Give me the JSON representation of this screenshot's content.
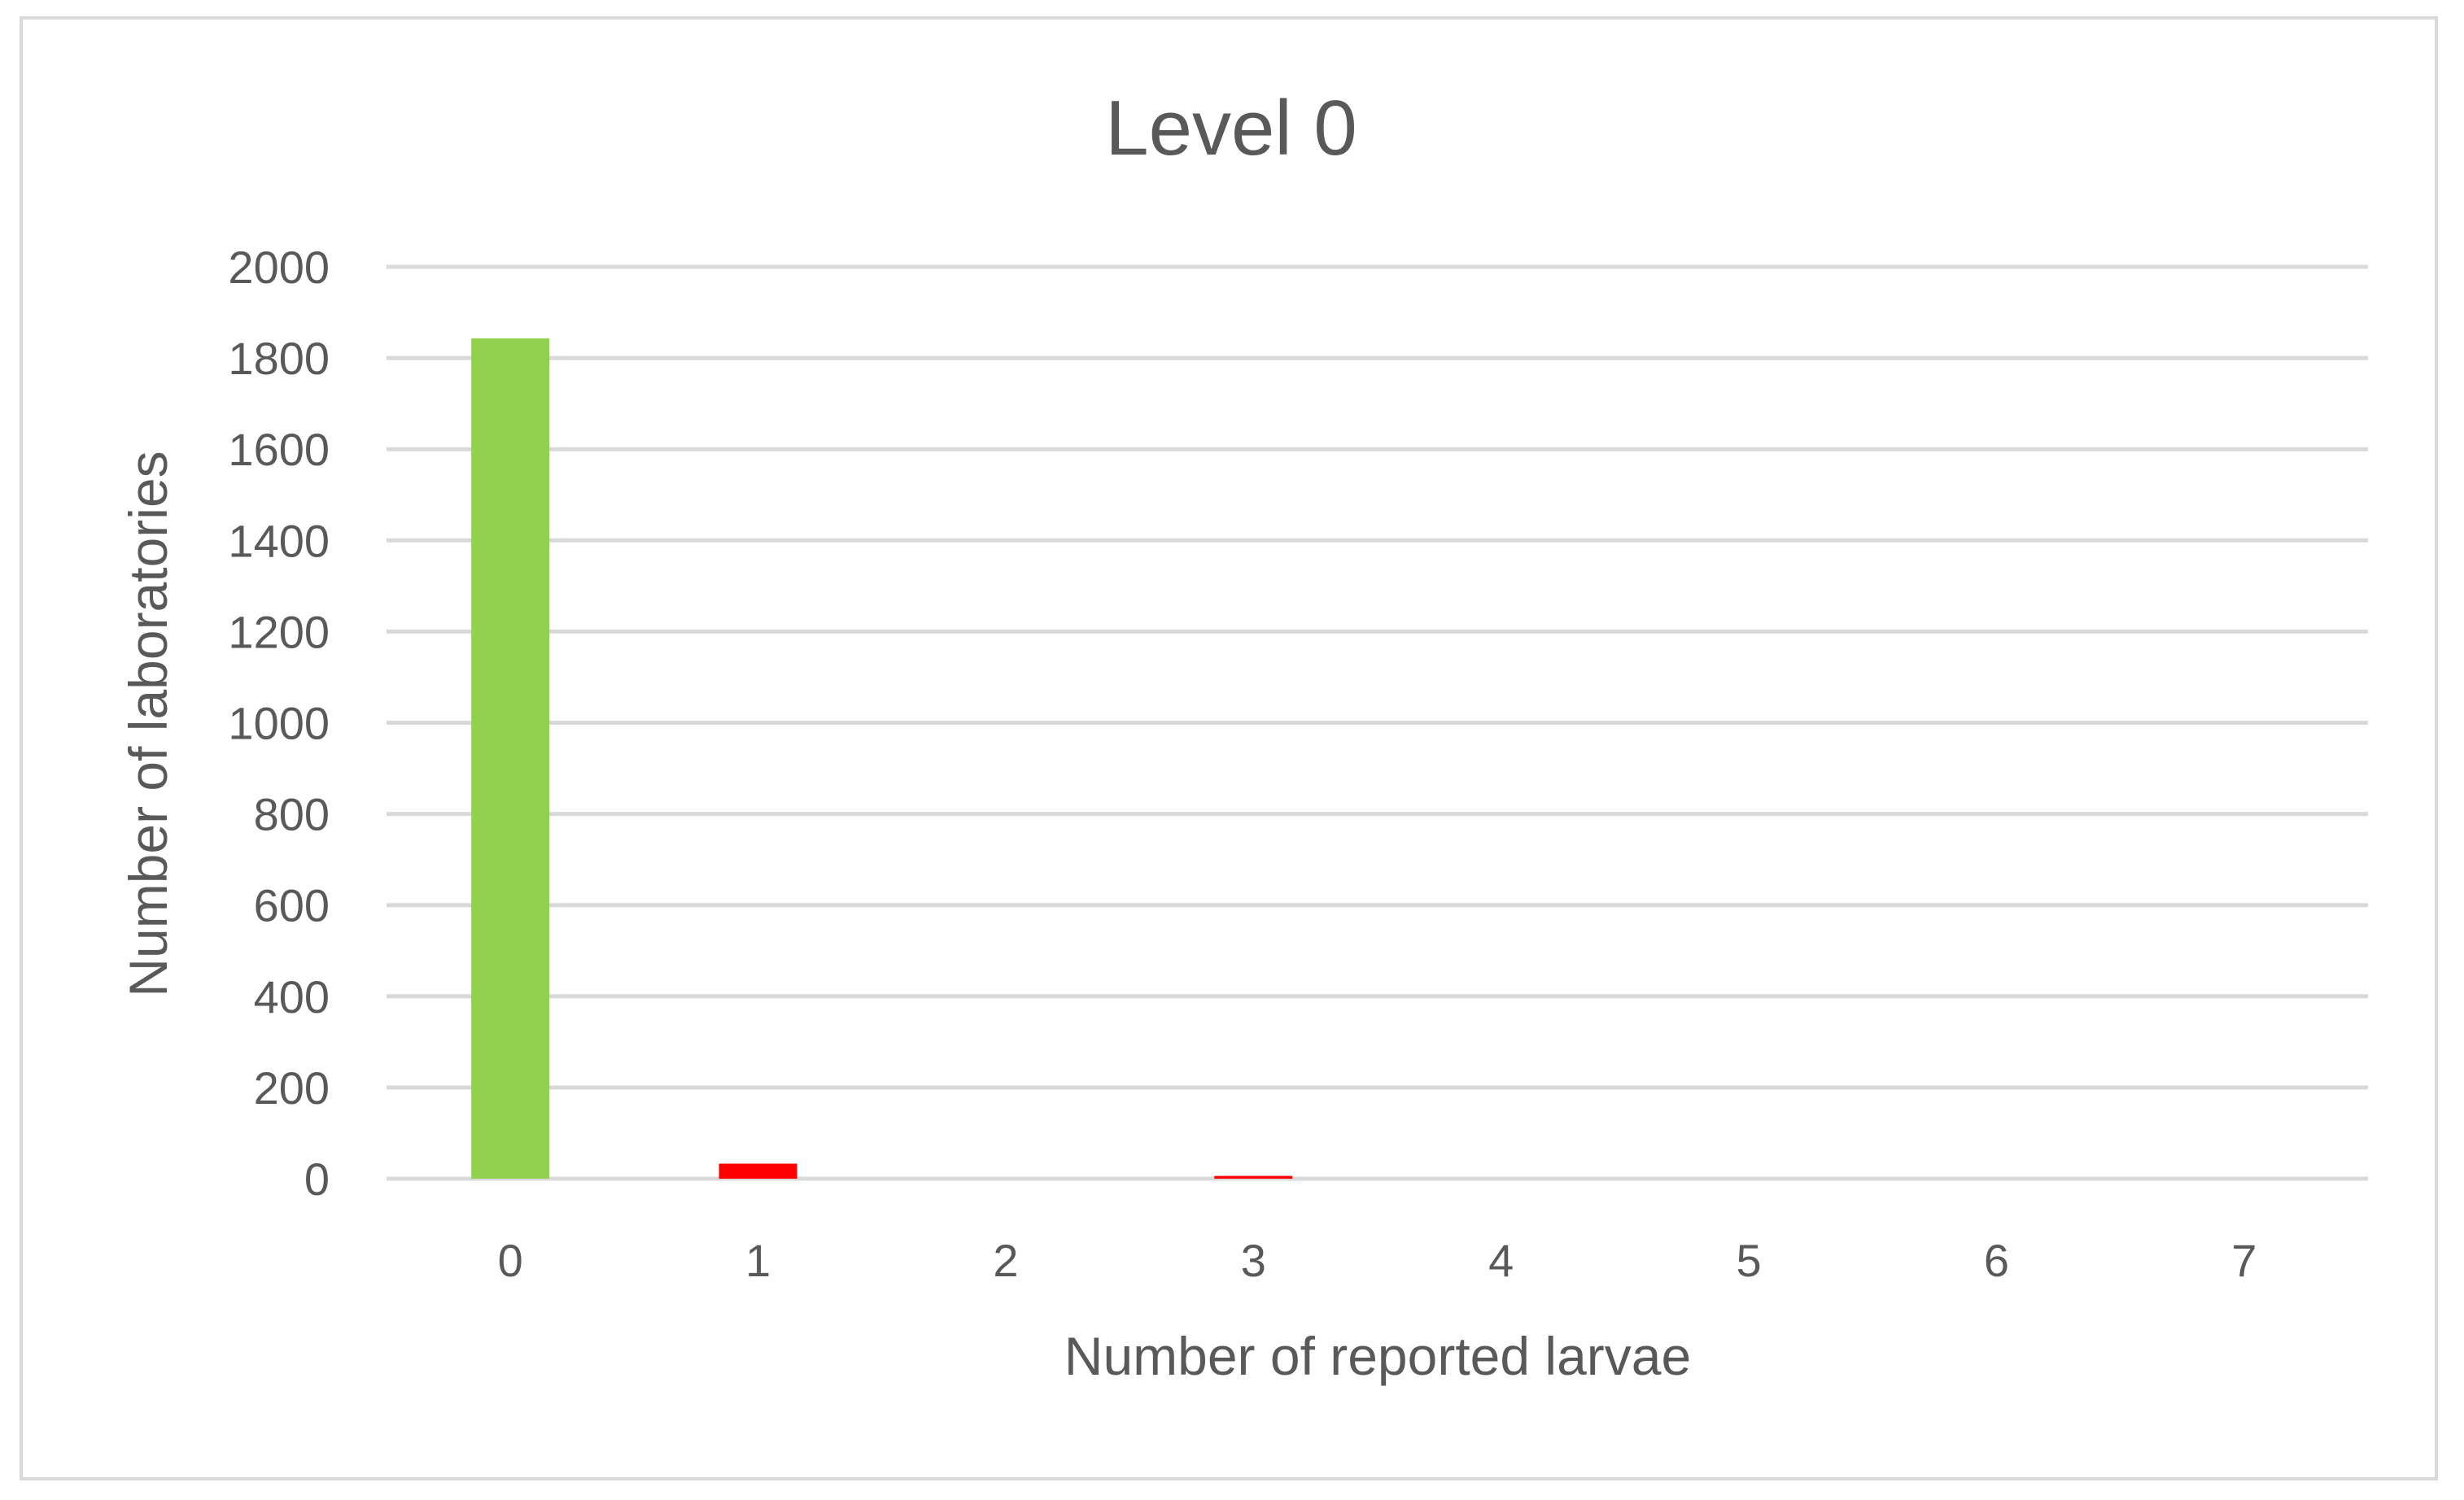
{
  "chart_data": {
    "type": "bar",
    "title": "Level 0",
    "xlabel": "Number of reported larvae",
    "ylabel": "Number of laboratories",
    "categories": [
      "0",
      "1",
      "2",
      "3",
      "4",
      "5",
      "6",
      "7"
    ],
    "values": [
      1843,
      33,
      0,
      6,
      0,
      0,
      0,
      0
    ],
    "bar_colors": [
      "#92d050",
      "#ff0000",
      "#ff0000",
      "#ff0000",
      "#ff0000",
      "#ff0000",
      "#ff0000",
      "#ff0000"
    ],
    "ylim": [
      0,
      2000
    ],
    "yticks": [
      "0",
      "200",
      "400",
      "600",
      "800",
      "1000",
      "1200",
      "1400",
      "1600",
      "1800",
      "2000"
    ],
    "grid": true,
    "legend": "none"
  }
}
